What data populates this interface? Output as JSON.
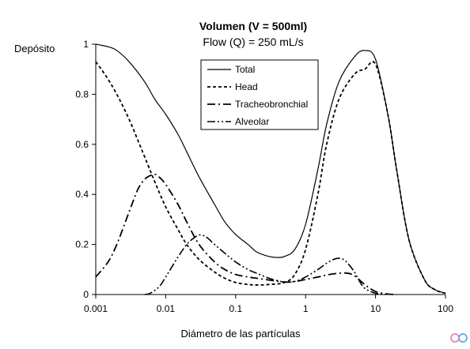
{
  "chart_data": {
    "type": "line",
    "title": "Volumen (V = 500ml)",
    "subtitle": "Flow (Q) = 250 mL/s",
    "xlabel": "Diámetro de las partículas",
    "ylabel": "Depósito",
    "xscale": "log",
    "xlim": [
      0.001,
      100
    ],
    "ylim": [
      0,
      1
    ],
    "xticks": [
      "0.001",
      "0.01",
      "0.1",
      "1",
      "10",
      "100"
    ],
    "yticks": [
      "0",
      "0.2",
      "0.4",
      "0.6",
      "0.8",
      "1"
    ],
    "grid": false,
    "legend": "top-center",
    "series": [
      {
        "name": "Total",
        "dash": "solid",
        "points": [
          [
            0.001,
            1.0
          ],
          [
            0.0015,
            0.99
          ],
          [
            0.002,
            0.975
          ],
          [
            0.003,
            0.93
          ],
          [
            0.005,
            0.85
          ],
          [
            0.007,
            0.78
          ],
          [
            0.01,
            0.72
          ],
          [
            0.015,
            0.64
          ],
          [
            0.02,
            0.57
          ],
          [
            0.03,
            0.47
          ],
          [
            0.05,
            0.36
          ],
          [
            0.07,
            0.29
          ],
          [
            0.1,
            0.24
          ],
          [
            0.15,
            0.2
          ],
          [
            0.2,
            0.17
          ],
          [
            0.3,
            0.152
          ],
          [
            0.4,
            0.148
          ],
          [
            0.5,
            0.152
          ],
          [
            0.7,
            0.18
          ],
          [
            1,
            0.28
          ],
          [
            1.5,
            0.5
          ],
          [
            2,
            0.68
          ],
          [
            3,
            0.85
          ],
          [
            5,
            0.95
          ],
          [
            7,
            0.975
          ],
          [
            10,
            0.94
          ],
          [
            15,
            0.72
          ],
          [
            20,
            0.5
          ],
          [
            30,
            0.22
          ],
          [
            50,
            0.06
          ],
          [
            70,
            0.02
          ],
          [
            100,
            0.005
          ]
        ]
      },
      {
        "name": "Head",
        "dash": "dash",
        "points": [
          [
            0.001,
            0.93
          ],
          [
            0.0012,
            0.9
          ],
          [
            0.0015,
            0.86
          ],
          [
            0.002,
            0.8
          ],
          [
            0.003,
            0.7
          ],
          [
            0.005,
            0.55
          ],
          [
            0.007,
            0.45
          ],
          [
            0.01,
            0.35
          ],
          [
            0.015,
            0.26
          ],
          [
            0.02,
            0.2
          ],
          [
            0.03,
            0.14
          ],
          [
            0.05,
            0.09
          ],
          [
            0.07,
            0.065
          ],
          [
            0.1,
            0.048
          ],
          [
            0.15,
            0.04
          ],
          [
            0.2,
            0.038
          ],
          [
            0.3,
            0.04
          ],
          [
            0.5,
            0.048
          ],
          [
            0.7,
            0.08
          ],
          [
            1,
            0.18
          ],
          [
            1.5,
            0.4
          ],
          [
            2,
            0.6
          ],
          [
            3,
            0.78
          ],
          [
            5,
            0.88
          ],
          [
            7,
            0.9
          ],
          [
            10,
            0.92
          ],
          [
            15,
            0.72
          ],
          [
            20,
            0.5
          ],
          [
            30,
            0.22
          ],
          [
            50,
            0.06
          ],
          [
            70,
            0.02
          ],
          [
            100,
            0.005
          ]
        ]
      },
      {
        "name": "Tracheobronchial",
        "dash": "dashdot",
        "points": [
          [
            0.001,
            0.07
          ],
          [
            0.0015,
            0.13
          ],
          [
            0.002,
            0.2
          ],
          [
            0.003,
            0.33
          ],
          [
            0.004,
            0.42
          ],
          [
            0.005,
            0.46
          ],
          [
            0.006,
            0.475
          ],
          [
            0.007,
            0.48
          ],
          [
            0.008,
            0.47
          ],
          [
            0.01,
            0.44
          ],
          [
            0.015,
            0.36
          ],
          [
            0.02,
            0.29
          ],
          [
            0.03,
            0.2
          ],
          [
            0.05,
            0.13
          ],
          [
            0.07,
            0.1
          ],
          [
            0.1,
            0.08
          ],
          [
            0.15,
            0.07
          ],
          [
            0.2,
            0.065
          ],
          [
            0.3,
            0.058
          ],
          [
            0.5,
            0.05
          ],
          [
            0.7,
            0.052
          ],
          [
            1,
            0.06
          ],
          [
            1.5,
            0.07
          ],
          [
            2,
            0.078
          ],
          [
            3,
            0.085
          ],
          [
            4,
            0.085
          ],
          [
            5,
            0.075
          ],
          [
            7,
            0.04
          ],
          [
            10,
            0.012
          ],
          [
            15,
            0.002
          ],
          [
            20,
            0.0
          ]
        ]
      },
      {
        "name": "Alveolar",
        "dash": "dashdotdot",
        "points": [
          [
            0.005,
            0.0
          ],
          [
            0.006,
            0.005
          ],
          [
            0.008,
            0.03
          ],
          [
            0.01,
            0.07
          ],
          [
            0.015,
            0.15
          ],
          [
            0.02,
            0.2
          ],
          [
            0.025,
            0.225
          ],
          [
            0.03,
            0.238
          ],
          [
            0.035,
            0.235
          ],
          [
            0.04,
            0.225
          ],
          [
            0.05,
            0.2
          ],
          [
            0.07,
            0.165
          ],
          [
            0.1,
            0.13
          ],
          [
            0.15,
            0.1
          ],
          [
            0.2,
            0.085
          ],
          [
            0.3,
            0.065
          ],
          [
            0.4,
            0.055
          ],
          [
            0.5,
            0.05
          ],
          [
            0.7,
            0.052
          ],
          [
            1,
            0.07
          ],
          [
            1.5,
            0.1
          ],
          [
            2,
            0.125
          ],
          [
            2.5,
            0.14
          ],
          [
            3,
            0.145
          ],
          [
            3.5,
            0.14
          ],
          [
            4,
            0.125
          ],
          [
            5,
            0.09
          ],
          [
            6,
            0.05
          ],
          [
            7,
            0.025
          ],
          [
            10,
            0.005
          ],
          [
            15,
            0.0
          ]
        ]
      }
    ]
  }
}
